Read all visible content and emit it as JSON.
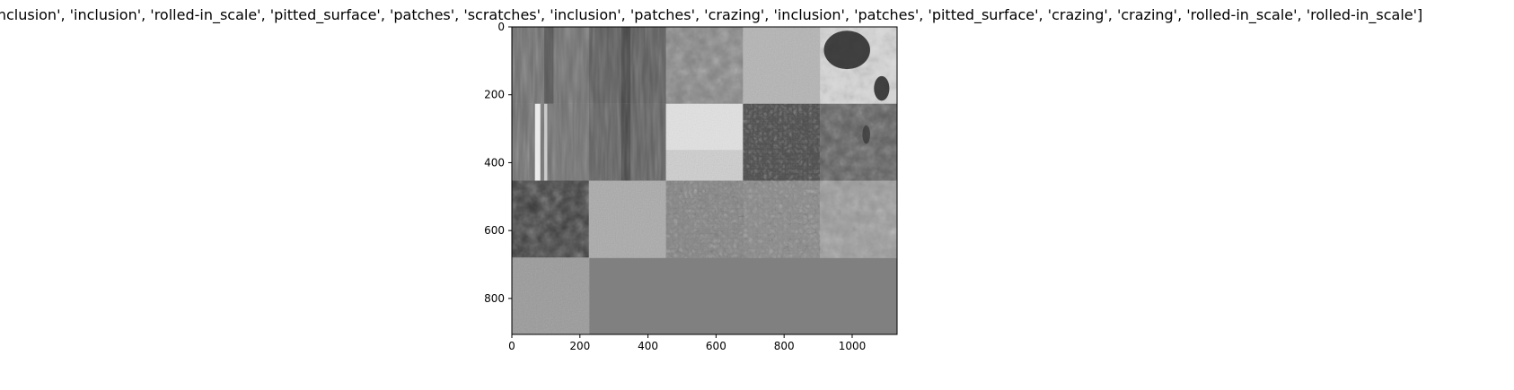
{
  "figure": {
    "title": "['inclusion', 'inclusion', 'rolled-in_scale', 'pitted_surface', 'patches', 'scratches', 'inclusion', 'patches', 'crazing', 'inclusion', 'patches', 'pitted_surface', 'crazing', 'crazing', 'rolled-in_scale', 'rolled-in_scale']",
    "background_color": "#ffffff",
    "empty_tile_color": "#808080"
  },
  "image_grid": {
    "rows": 4,
    "cols": 5,
    "tile_count": 16,
    "x_range": [
      0,
      1132
    ],
    "y_range": [
      0,
      906
    ],
    "x_ticks": [
      "0",
      "200",
      "400",
      "600",
      "800",
      "1000"
    ],
    "y_ticks": [
      "0",
      "200",
      "400",
      "600",
      "800"
    ],
    "tiles": [
      {
        "label": "inclusion",
        "texture": "vertical-streaks",
        "tone": "#6f6f6f"
      },
      {
        "label": "inclusion",
        "texture": "vertical-streaks",
        "tone": "#5a5a5a"
      },
      {
        "label": "rolled-in_scale",
        "texture": "mottled",
        "tone": "#858585"
      },
      {
        "label": "pitted_surface",
        "texture": "fine-grain",
        "tone": "#b4b4b4"
      },
      {
        "label": "patches",
        "texture": "dark-blotches",
        "tone": "#d8d8d8"
      },
      {
        "label": "scratches",
        "texture": "bright-scratch",
        "tone": "#707070"
      },
      {
        "label": "inclusion",
        "texture": "vertical-streaks",
        "tone": "#5f5f5f"
      },
      {
        "label": "patches",
        "texture": "bright-wash",
        "tone": "#cfcfcf"
      },
      {
        "label": "crazing",
        "texture": "dark-cracks",
        "tone": "#505050"
      },
      {
        "label": "inclusion",
        "texture": "dark-spots",
        "tone": "#5a5a5a"
      },
      {
        "label": "patches",
        "texture": "dark-cloud",
        "tone": "#3a3a3a"
      },
      {
        "label": "pitted_surface",
        "texture": "light-grain",
        "tone": "#aaaaaa"
      },
      {
        "label": "crazing",
        "texture": "cracks",
        "tone": "#8a8a8a"
      },
      {
        "label": "crazing",
        "texture": "cracks",
        "tone": "#8f8f8f"
      },
      {
        "label": "rolled-in_scale",
        "texture": "mottled",
        "tone": "#9a9a9a"
      },
      {
        "label": "rolled-in_scale",
        "texture": "pits",
        "tone": "#999999"
      }
    ]
  }
}
